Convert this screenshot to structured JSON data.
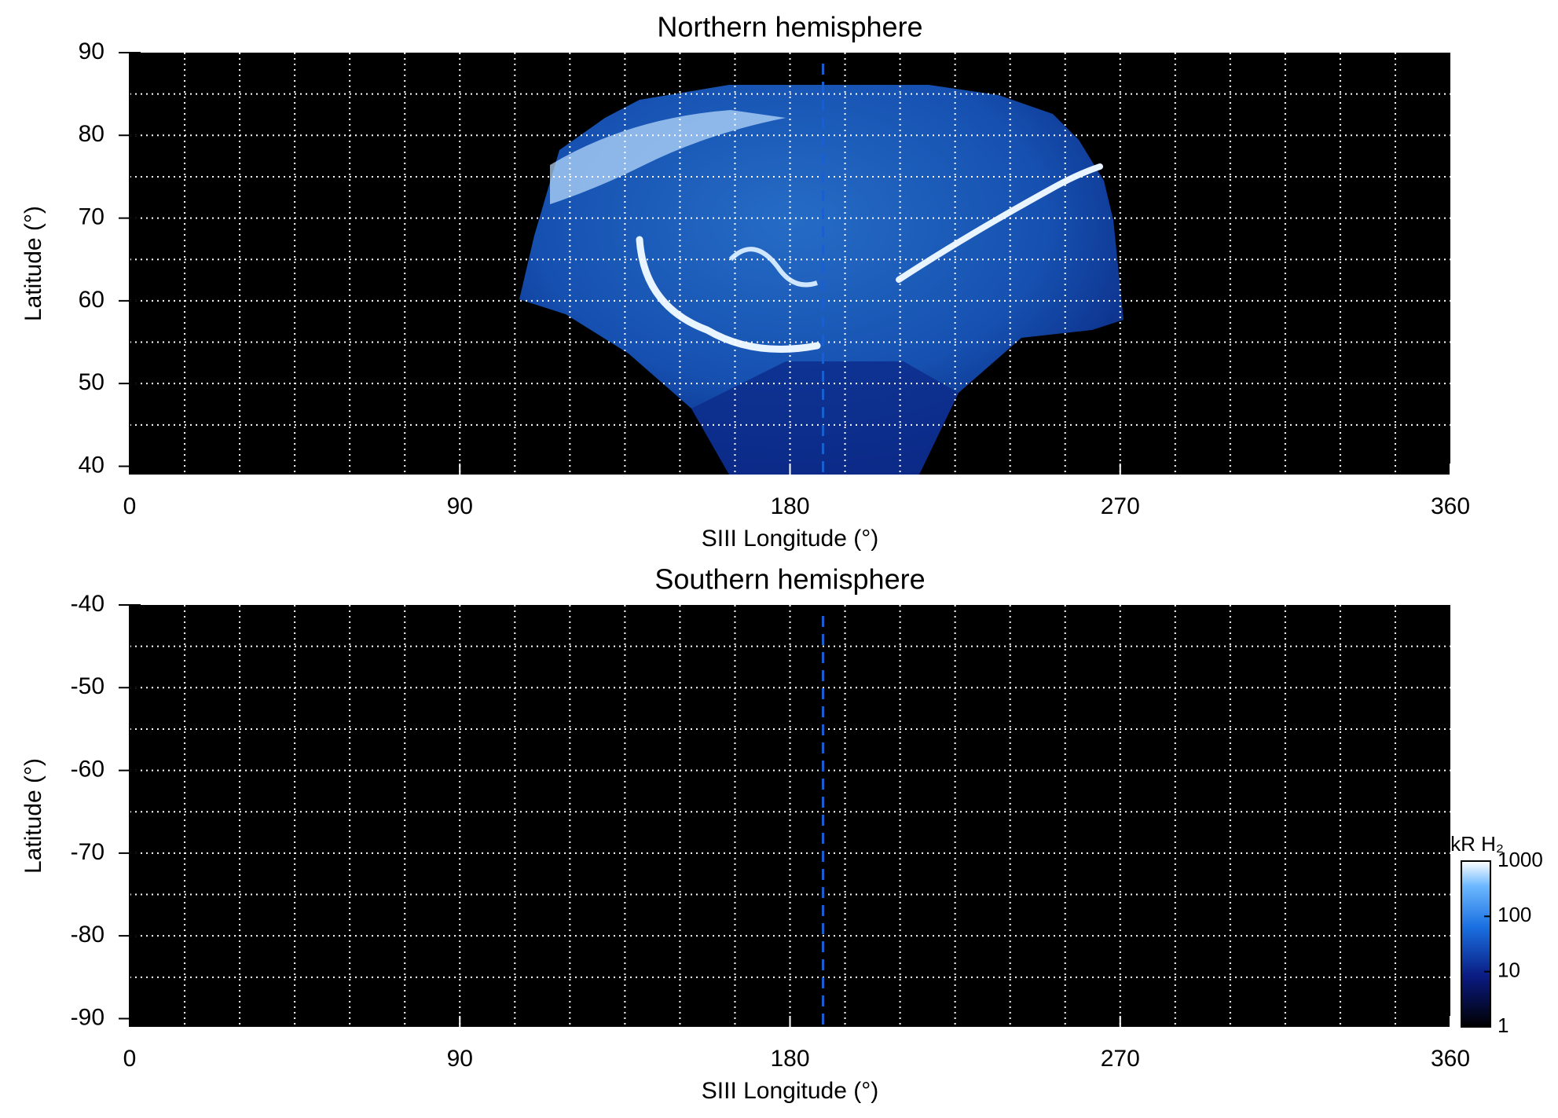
{
  "chart_data": [
    {
      "type": "map",
      "title": "Northern hemisphere",
      "xlabel": "SIII Longitude (°)",
      "ylabel": "Latitude (°)",
      "xlim": [
        0,
        360
      ],
      "xticks": [
        0,
        90,
        180,
        270,
        360
      ],
      "xgrid": [
        15,
        30,
        45,
        60,
        75,
        90,
        105,
        120,
        135,
        150,
        165,
        180,
        195,
        210,
        225,
        240,
        255,
        270,
        285,
        300,
        315,
        330,
        345
      ],
      "ylim": [
        39,
        90
      ],
      "yticks": [
        40,
        50,
        60,
        70,
        80,
        90
      ],
      "ygrid": [
        45,
        50,
        55,
        60,
        65,
        70,
        75,
        80,
        85
      ],
      "vlines": [
        189
      ],
      "grid": true
    },
    {
      "type": "map",
      "title": "Southern hemisphere",
      "xlabel": "SIII Longitude (°)",
      "ylabel": "Latitude (°)",
      "xlim": [
        0,
        360
      ],
      "xticks": [
        0,
        90,
        180,
        270,
        360
      ],
      "xgrid": [
        15,
        30,
        45,
        60,
        75,
        90,
        105,
        120,
        135,
        150,
        165,
        180,
        195,
        210,
        225,
        240,
        255,
        270,
        285,
        300,
        315,
        330,
        345
      ],
      "ylim": [
        -91,
        -40
      ],
      "yticks": [
        -40,
        -50,
        -60,
        -70,
        -80,
        -90
      ],
      "ygrid": [
        -45,
        -50,
        -55,
        -60,
        -65,
        -70,
        -75,
        -80,
        -85
      ],
      "vlines": [
        189
      ],
      "grid": true,
      "colorbar": {
        "label": "kR H₂",
        "lim": [
          1,
          1000
        ],
        "ticks": [
          1,
          10,
          100,
          1000
        ],
        "log": true
      }
    }
  ]
}
